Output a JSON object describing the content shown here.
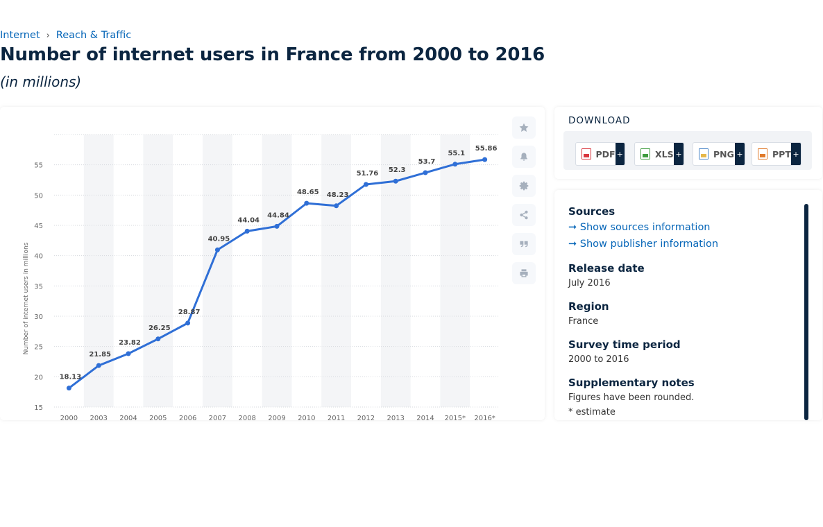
{
  "breadcrumb": {
    "items": [
      "Internet",
      "Reach & Traffic"
    ],
    "separator": "›"
  },
  "title": "Number of internet users in France from 2000 to 2016",
  "subtitle": "(in millions)",
  "chart_data": {
    "type": "line",
    "title": "",
    "xlabel": "",
    "ylabel": "Number of internet users in millions",
    "categories": [
      "2000",
      "2003",
      "2004",
      "2005",
      "2006",
      "2007",
      "2008",
      "2009",
      "2010",
      "2011",
      "2012",
      "2013",
      "2014",
      "2015*",
      "2016*"
    ],
    "values": [
      18.13,
      21.85,
      23.82,
      26.25,
      28.87,
      40.95,
      44.04,
      44.84,
      48.65,
      48.23,
      51.76,
      52.3,
      53.7,
      55.1,
      55.86
    ],
    "data_labels": [
      "18.13",
      "21.85",
      "23.82",
      "26.25",
      "28.87",
      "40.95",
      "44.04",
      "44.84",
      "48.65",
      "48.23",
      "51.76",
      "52.3",
      "53.7",
      "55.1",
      "55.86"
    ],
    "yticks": [
      15,
      20,
      25,
      30,
      35,
      40,
      45,
      50,
      55
    ],
    "ylim": [
      15,
      60
    ],
    "grid": true,
    "legend": "none",
    "line_color": "#2f6fd6",
    "alt_band_color": "#f4f5f7"
  },
  "tools": [
    "favorite-icon",
    "bell-icon",
    "gear-icon",
    "share-icon",
    "quote-icon",
    "print-icon"
  ],
  "download": {
    "title": "DOWNLOAD",
    "buttons": [
      {
        "label": "PDF",
        "plus": "+",
        "icon_color": "#d9363e"
      },
      {
        "label": "XLS",
        "plus": "+",
        "icon_color": "#3e9b3e"
      },
      {
        "label": "PNG",
        "plus": "+",
        "icon_color": "#4a86c8"
      },
      {
        "label": "PPT",
        "plus": "+",
        "icon_color": "#e07a2a"
      }
    ]
  },
  "info": {
    "sources_heading": "Sources",
    "show_sources": "Show sources information",
    "show_publisher": "Show publisher information",
    "release_heading": "Release date",
    "release_value": "July 2016",
    "region_heading": "Region",
    "region_value": "France",
    "period_heading": "Survey time period",
    "period_value": "2000 to 2016",
    "notes_heading": "Supplementary notes",
    "notes_line1": "Figures have been rounded.",
    "notes_line2": "* estimate",
    "arrow": "➞"
  }
}
